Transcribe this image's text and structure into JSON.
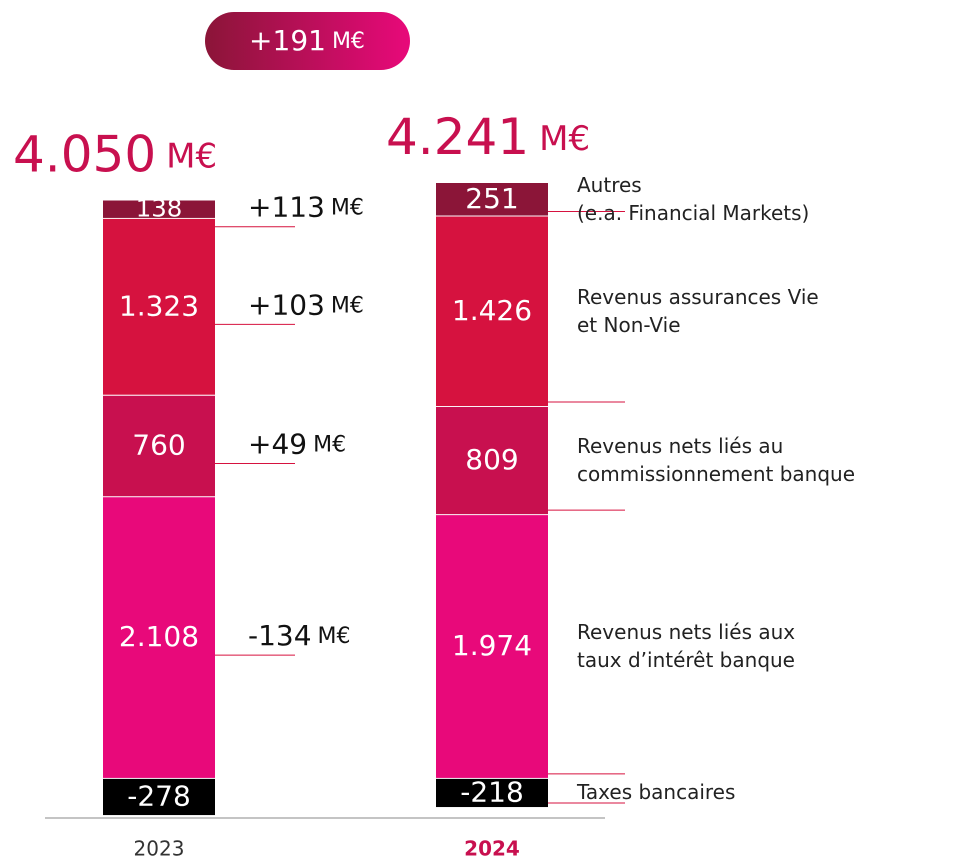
{
  "chart_data": {
    "type": "stacked_bar",
    "categories": [
      "2023",
      "2024"
    ],
    "unit": "M€",
    "totals": {
      "values": [
        4050,
        4241
      ],
      "value_labels": [
        "4.050",
        "4.241"
      ]
    },
    "change": {
      "value": 191,
      "label": "+191"
    },
    "ylim": [
      -300,
      4400
    ],
    "series": [
      {
        "name": "Taxes bancaires",
        "color": "#000000",
        "values": [
          -278,
          -218
        ],
        "value_labels": [
          "-278",
          "-218"
        ]
      },
      {
        "name": "Revenus nets liés aux\ntaux d’intérêt banque",
        "color": "#e8097a",
        "values": [
          2108,
          1974
        ],
        "value_labels": [
          "2.108",
          "1.974"
        ],
        "delta": -134,
        "delta_label": "-134"
      },
      {
        "name": "Revenus nets liés au\ncommissionnement banque",
        "color": "#c8104f",
        "values": [
          760,
          809
        ],
        "value_labels": [
          "760",
          "809"
        ],
        "delta": 49,
        "delta_label": "+49"
      },
      {
        "name": "Revenus assurances Vie\net Non-Vie",
        "color": "#d6123f",
        "values": [
          1323,
          1426
        ],
        "value_labels": [
          "1.323",
          "1.426"
        ],
        "delta": 103,
        "delta_label": "+103"
      },
      {
        "name": "Autres\n(e.a. Financial Markets)",
        "color": "#8b1538",
        "values": [
          138,
          251
        ],
        "value_labels": [
          "138",
          "251"
        ],
        "delta": 113,
        "delta_label": "+113"
      }
    ]
  }
}
